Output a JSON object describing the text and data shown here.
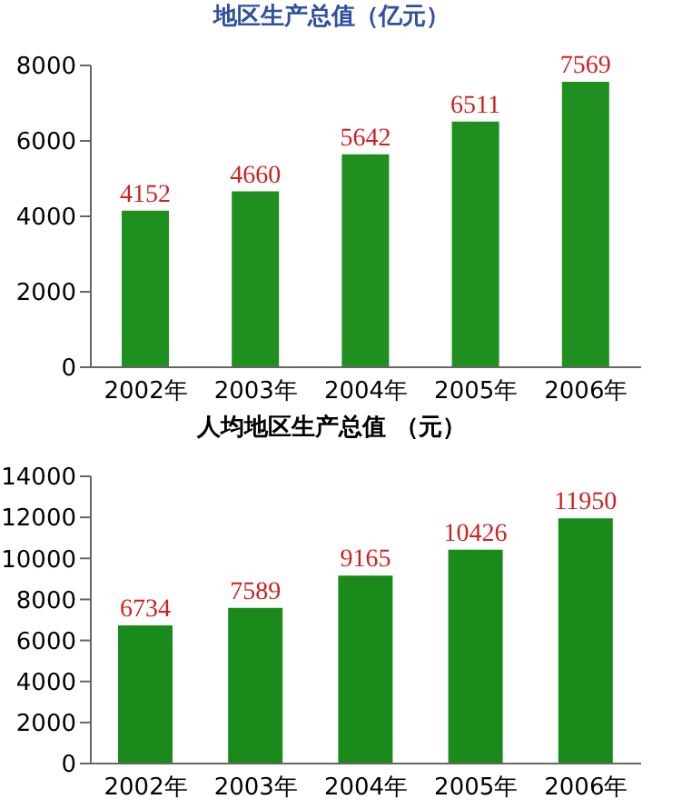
{
  "chart_data": [
    {
      "type": "bar",
      "title": "地区生产总值（亿元）",
      "categories": [
        "2002年",
        "2003年",
        "2004年",
        "2005年",
        "2006年"
      ],
      "values": [
        4152,
        4660,
        5642,
        6511,
        7569
      ],
      "color": "#1f8f1f",
      "ylim": [
        0,
        8000
      ],
      "yticks": [
        0,
        2000,
        4000,
        6000,
        8000
      ],
      "data_labels": true
    },
    {
      "type": "bar",
      "title": "人均地区生产总值  （元）",
      "categories": [
        "2002年",
        "2003年",
        "2004年",
        "2005年",
        "2006年"
      ],
      "values": [
        6734,
        7589,
        9165,
        10426,
        11950
      ],
      "color": "#1a8a1a",
      "ylim": [
        0,
        14000
      ],
      "yticks": [
        0,
        2000,
        4000,
        6000,
        8000,
        10000,
        12000,
        14000
      ],
      "data_labels": true
    }
  ]
}
